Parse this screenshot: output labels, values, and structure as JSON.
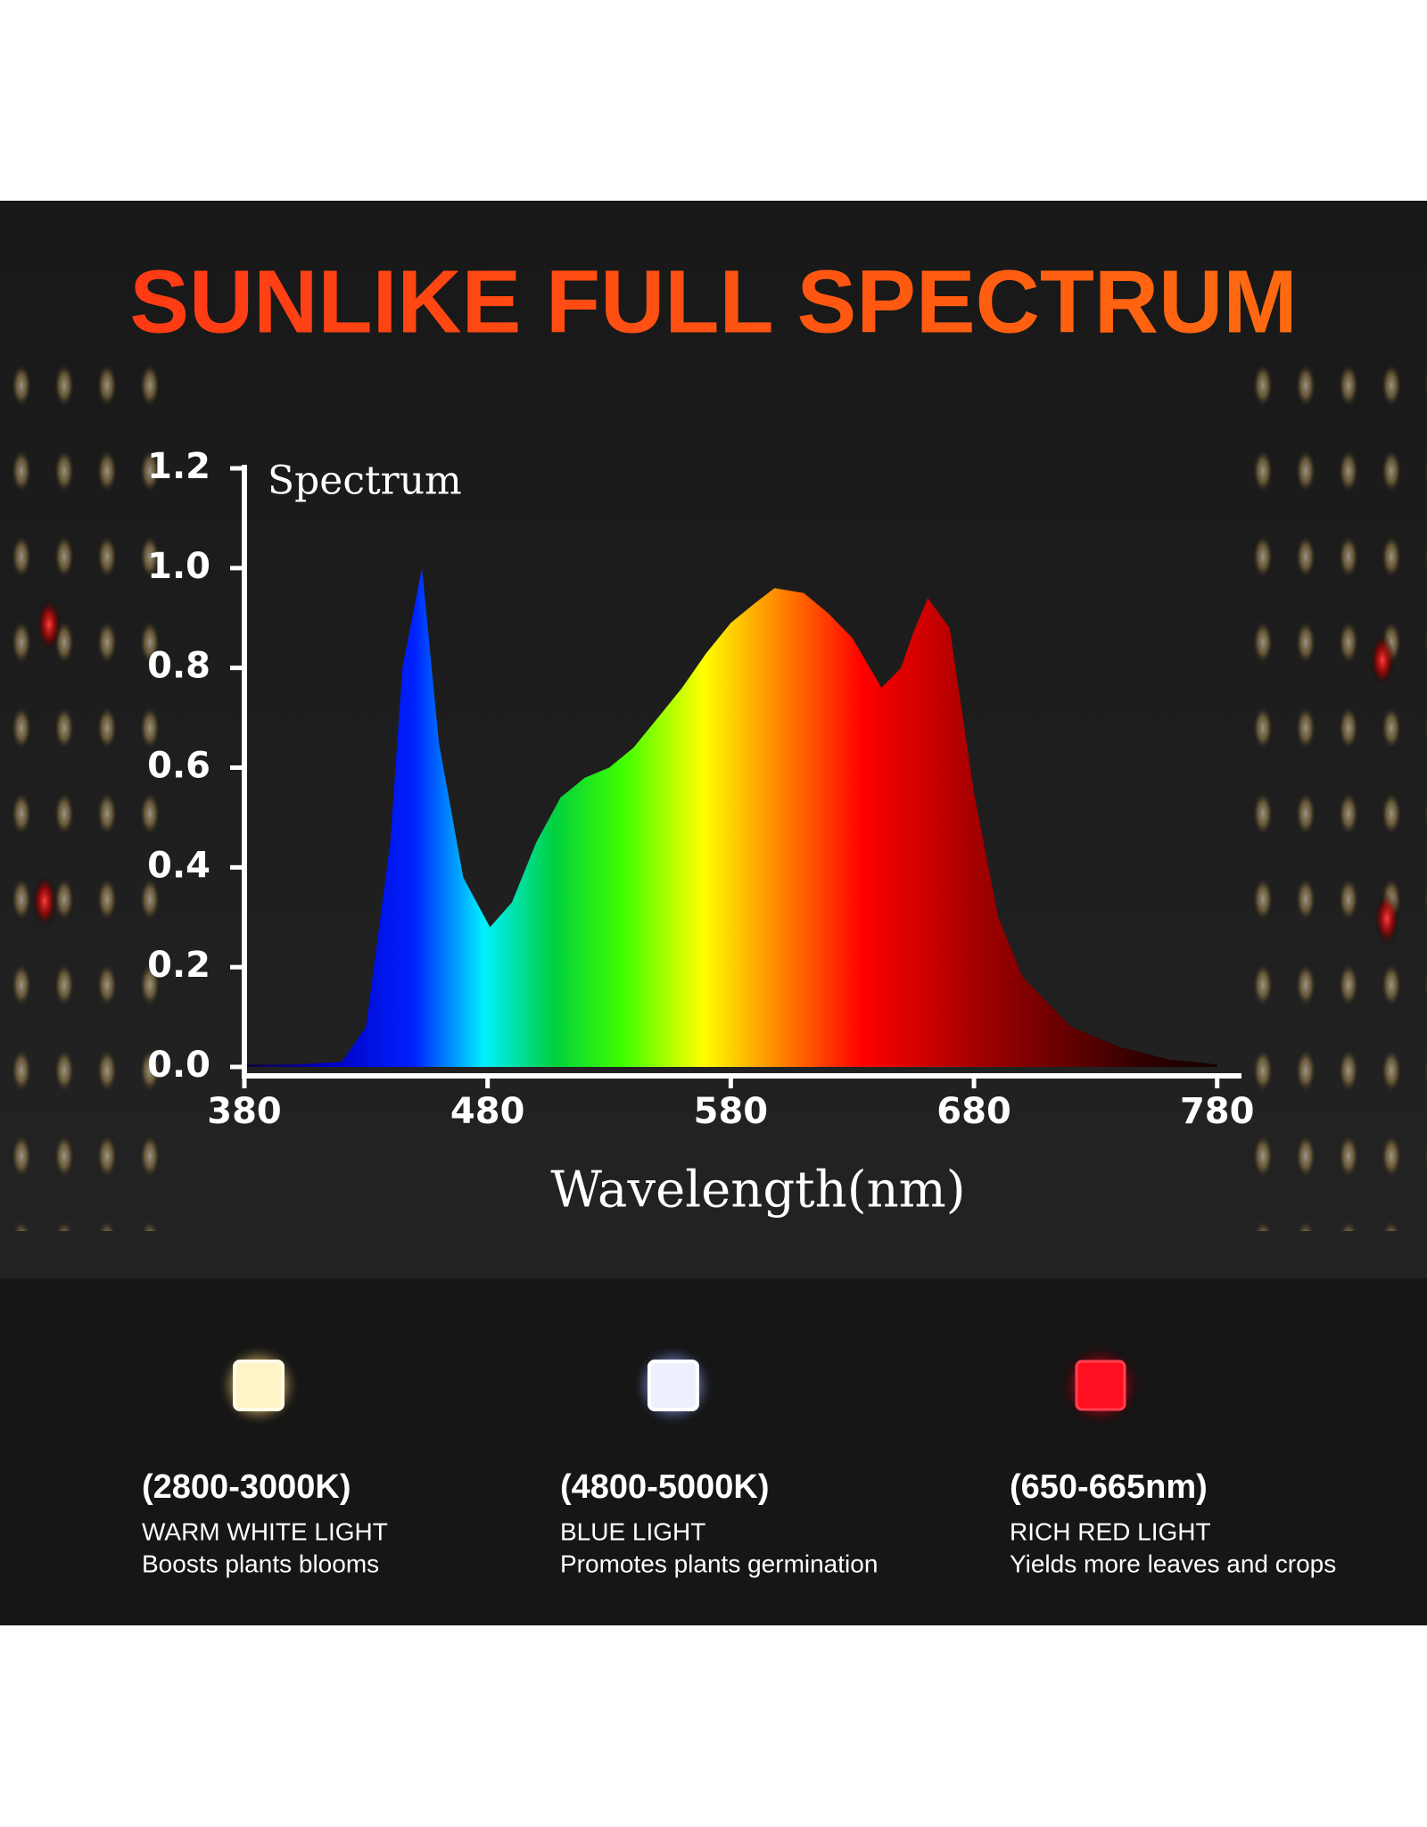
{
  "headline": "SUNLIKE FULL SPECTRUM",
  "chart_data": {
    "type": "area",
    "title": "Spectrum",
    "x_label": "Wavelength(nm)",
    "x": [
      380,
      400,
      420,
      430,
      440,
      445,
      453,
      460,
      470,
      481,
      490,
      500,
      510,
      520,
      530,
      540,
      550,
      560,
      570,
      580,
      590,
      598,
      610,
      620,
      630,
      642,
      650,
      655,
      661,
      670,
      680,
      690,
      700,
      720,
      740,
      760,
      780
    ],
    "values": [
      0.005,
      0.005,
      0.01,
      0.08,
      0.45,
      0.8,
      1.0,
      0.65,
      0.38,
      0.28,
      0.33,
      0.45,
      0.54,
      0.58,
      0.6,
      0.64,
      0.7,
      0.76,
      0.83,
      0.89,
      0.93,
      0.96,
      0.95,
      0.91,
      0.86,
      0.76,
      0.8,
      0.87,
      0.94,
      0.88,
      0.55,
      0.3,
      0.18,
      0.08,
      0.04,
      0.015,
      0.005
    ],
    "xlim": [
      380,
      790
    ],
    "ylim": [
      0,
      1.2
    ],
    "xticks": [
      380,
      480,
      580,
      680,
      780
    ],
    "yticks": [
      {
        "value": 0,
        "label": "0.0"
      },
      0.2,
      0.4,
      0.6,
      0.8,
      {
        "value": 1,
        "label": "1.0"
      },
      1.2
    ]
  },
  "features": [
    {
      "range": "(2800-3000K)",
      "name": "WARM WHITE LIGHT",
      "description": "Boosts plants blooms"
    },
    {
      "range": "(4800-5000K)",
      "name": "BLUE LIGHT",
      "description": "Promotes plants germination"
    },
    {
      "range": "(650-665nm)",
      "name": "RICH RED LIGHT",
      "description": "Yields more leaves and crops"
    }
  ]
}
